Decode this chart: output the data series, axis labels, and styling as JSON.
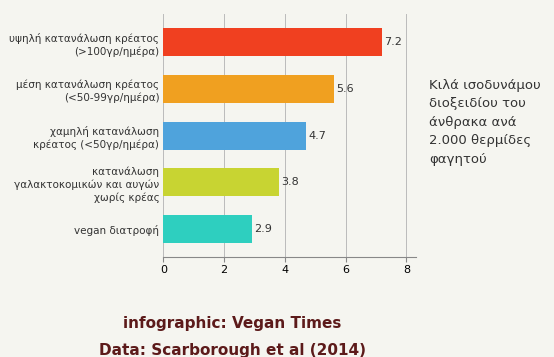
{
  "categories": [
    "vegan διατροφή",
    "κατανάλωση\nγαλακτοκομικών και αυγών\nχωρίς κρέας",
    "χαμηλή κατανάλωση\nκρέατος (<50γρ/ημέρα)",
    "μέση κατανάλωση κρέατος\n(<50-99γρ/ημέρα)",
    "υψηλή κατανάλωση κρέατος\n(>100γρ/ημέρα)"
  ],
  "values": [
    2.9,
    3.8,
    4.7,
    5.6,
    7.2
  ],
  "colors": [
    "#2ecfbf",
    "#c8d432",
    "#4fa3dc",
    "#f0a020",
    "#f04020"
  ],
  "value_labels": [
    "2.9",
    "3.8",
    "4.7",
    "5.6",
    "7.2"
  ],
  "xlabel_ticks": [
    0,
    2,
    4,
    6,
    8
  ],
  "xlim": [
    0,
    8.3
  ],
  "side_text": "Κιλά ισοδυνάμου\nδιοξειδίου του\nάνθρακα ανά\n2.000 θερμίδες\nφαγητού",
  "footer_line1": "infographic: Vegan Times",
  "footer_line2": "Data: Scarborough et al (2014)",
  "footer_color": "#5c1a1a",
  "bg_color": "#f5f5f0",
  "bar_height": 0.6,
  "gridline_color": "#bbbbbb",
  "axis_label_color": "#333333",
  "value_label_fontsize": 8,
  "category_fontsize": 7.5,
  "side_text_fontsize": 9.5,
  "footer_fontsize": 11
}
